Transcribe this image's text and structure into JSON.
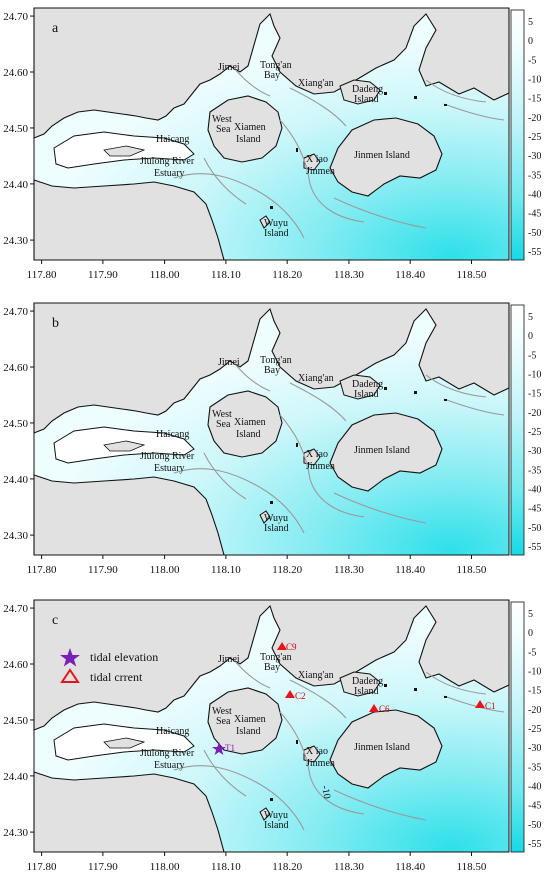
{
  "panels": [
    {
      "letter": "a"
    },
    {
      "letter": "b"
    },
    {
      "letter": "c"
    }
  ],
  "axes": {
    "x_ticks": [
      "117.80",
      "117.90",
      "118.00",
      "118.10",
      "118.20",
      "118.30",
      "118.40",
      "118.50"
    ],
    "y_ticks": [
      "24.70",
      "24.60",
      "24.50",
      "24.40",
      "24.30"
    ]
  },
  "colorbar": {
    "ticks": [
      "5",
      "0",
      "-5",
      "-10",
      "-15",
      "-20",
      "-25",
      "-30",
      "-35",
      "-40",
      "-45",
      "-50",
      "-55"
    ],
    "colors": {
      "top": "#ffffff",
      "bottom": "#17d9e6"
    }
  },
  "place_names": {
    "jimei": "Jimei",
    "tongan_1": "Tong'an",
    "tongan_2": "Bay",
    "xiangan": "Xiang'an",
    "dadeng_1": "Dadeng",
    "dadeng_2": "Island",
    "westsea_1": "West",
    "westsea_2": "Sea",
    "xiamen_1": "Xiamen",
    "xiamen_2": "Island",
    "haicang": "Haicang",
    "jiulong_1": "Jiulong River",
    "jiulong_2": "Estuary",
    "xiaojinmen_1": "X iao",
    "xiaojinmen_2": "Jinmen",
    "jinmen": "Jinmen Island",
    "wuyu_1": "Wuyu",
    "wuyu_2": "Island"
  },
  "legend": {
    "tidal_elevation": "tidal elevation",
    "tidal_current": "tidal crrent"
  },
  "stations": {
    "T1": "T1",
    "C9": "C9",
    "C2": "C2",
    "C6": "C6",
    "C1": "C1"
  },
  "contour_label": "-10",
  "colors": {
    "land": "#e1e1e1",
    "coast": "#111111",
    "isobath": "#9a9a9a",
    "water_shallow": "#f4feff",
    "water_deep": "#27dfe9",
    "station_current": "#e8141b",
    "station_elevation": "#7a1fb8"
  }
}
